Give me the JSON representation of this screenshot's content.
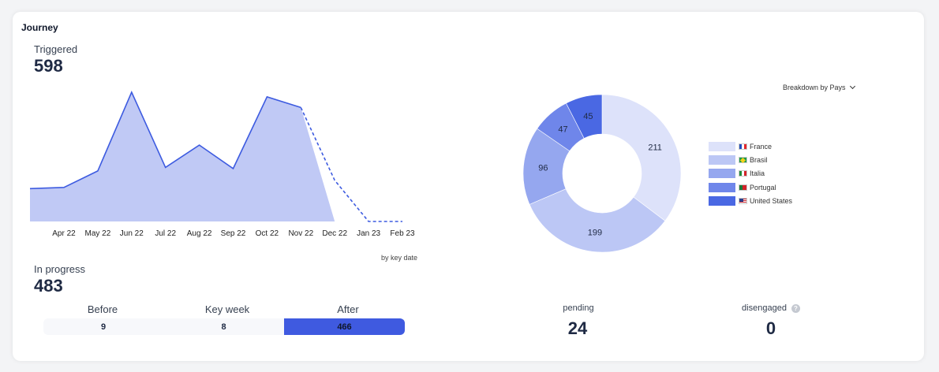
{
  "card": {
    "title": "Journey"
  },
  "triggered": {
    "label": "Triggered",
    "value": "598"
  },
  "in_progress": {
    "label": "In progress",
    "value": "483"
  },
  "area_caption": "by key date",
  "split": {
    "before": {
      "label": "Before",
      "value": "9"
    },
    "key_week": {
      "label": "Key week",
      "value": "8"
    },
    "after": {
      "label": "After",
      "value": "466"
    }
  },
  "breakdown": {
    "label": "Breakdown by Pays"
  },
  "stats": {
    "pending": {
      "label": "pending",
      "value": "24"
    },
    "disengaged": {
      "label": "disengaged",
      "value": "0"
    }
  },
  "colors": {
    "area_fill": "#c0c9f5",
    "area_line": "#3d5be0",
    "after_bar": "#3f5ae0",
    "france": "#dde2fa",
    "brasil": "#bcc7f5",
    "italia": "#95a7ef",
    "portugal": "#6f86ea",
    "united_states": "#4a68e3"
  },
  "chart_data": [
    {
      "type": "area",
      "title": "",
      "x": [
        "Apr 22",
        "May 22",
        "Jun 22",
        "Jul 22",
        "Aug 22",
        "Sep 22",
        "Oct 22",
        "Nov 22",
        "Dec 22",
        "Jan 23",
        "Feb 23"
      ],
      "values": [
        29,
        43,
        110,
        46,
        65,
        45,
        106,
        97,
        35,
        0,
        0
      ],
      "start_value": 28,
      "projected_from_index": 8,
      "ylim": [
        0,
        130
      ],
      "xlabel": "by key date",
      "ylabel": "",
      "grid": false
    },
    {
      "type": "pie",
      "subtype": "donut",
      "categories": [
        "France",
        "Brasil",
        "Italia",
        "Portugal",
        "United States"
      ],
      "values": [
        211,
        199,
        96,
        47,
        45
      ],
      "legend": "right"
    }
  ]
}
